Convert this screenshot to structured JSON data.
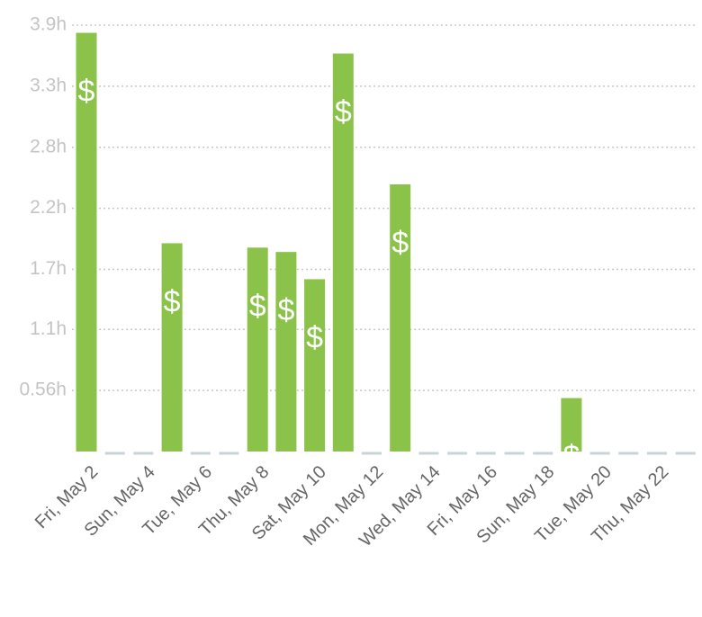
{
  "chart_data": {
    "type": "bar",
    "categories": [
      "Fri, May 2",
      null,
      "Sun, May 4",
      null,
      "Tue, May 6",
      null,
      "Thu, May 8",
      null,
      "Sat, May 10",
      null,
      "Mon, May 12",
      null,
      "Wed, May 14",
      null,
      "Fri, May 16",
      null,
      "Sun, May 18",
      null,
      "Tue, May 20",
      null,
      "Thu, May 22",
      null
    ],
    "values": [
      3.84,
      0,
      0,
      1.91,
      0,
      0,
      1.87,
      1.83,
      1.58,
      3.65,
      0,
      2.45,
      0,
      0,
      0,
      0,
      0,
      0.49,
      0,
      0,
      0,
      0
    ],
    "color": "#8bc34a",
    "zero_color": "#c9d3d8",
    "billable_icon": "$",
    "ylim": [
      0,
      3.91
    ],
    "yticks": [
      {
        "value": 0.56,
        "label": "0.56h"
      },
      {
        "value": 1.12,
        "label": "1.1h"
      },
      {
        "value": 1.67,
        "label": "1.7h"
      },
      {
        "value": 2.23,
        "label": "2.2h"
      },
      {
        "value": 2.79,
        "label": "2.8h"
      },
      {
        "value": 3.35,
        "label": "3.3h"
      },
      {
        "value": 3.91,
        "label": "3.9h"
      }
    ],
    "grid": true
  }
}
